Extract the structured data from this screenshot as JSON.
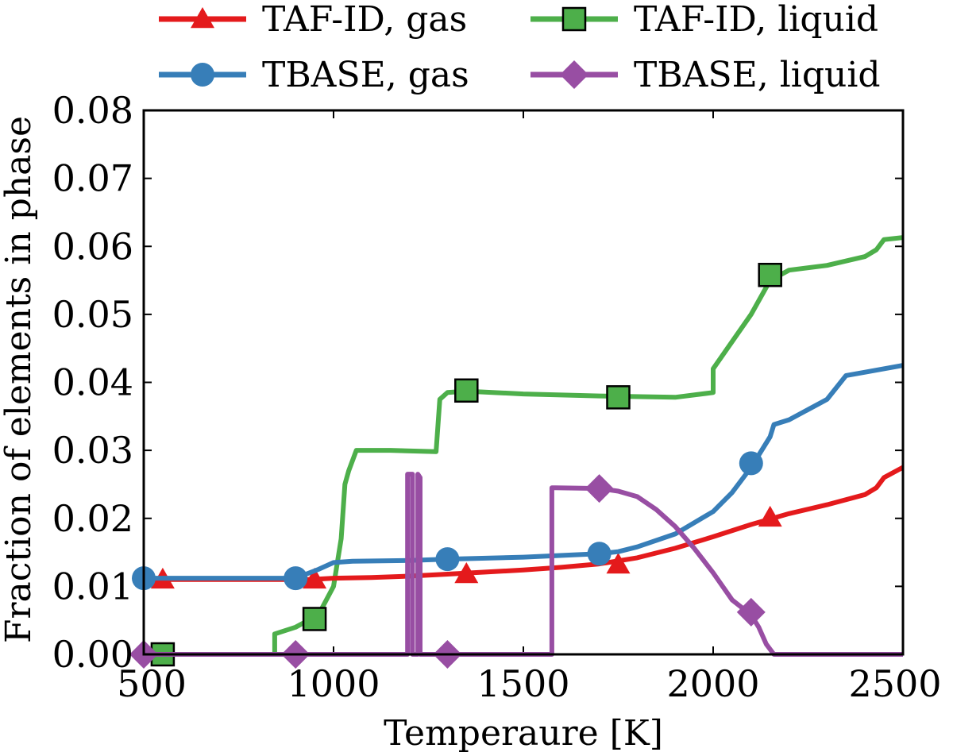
{
  "chart_data": {
    "type": "line",
    "title": "",
    "xlabel": "Temperaure [K]",
    "ylabel": "Fraction of elements in phase",
    "xlim": [
      500,
      2500
    ],
    "ylim": [
      0,
      0.08
    ],
    "xticks": [
      500,
      1000,
      1500,
      2000,
      2500
    ],
    "xtick_labels": [
      "500",
      "1000",
      "1500",
      "2000",
      "2500"
    ],
    "yticks": [
      0,
      0.01,
      0.02,
      0.03,
      0.04,
      0.05,
      0.06,
      0.07,
      0.08
    ],
    "ytick_labels": [
      "0.00",
      "0.01",
      "0.02",
      "0.03",
      "0.04",
      "0.05",
      "0.06",
      "0.07",
      "0.08"
    ],
    "legend_position": "above plot, two columns",
    "series": [
      {
        "name": "TAF-ID, gas",
        "color": "#e41a1c",
        "marker": "triangle",
        "x": [
          500,
          600,
          700,
          800,
          900,
          940,
          1000,
          1100,
          1200,
          1300,
          1400,
          1500,
          1600,
          1700,
          1800,
          1900,
          2000,
          2100,
          2200,
          2300,
          2400,
          2430,
          2450,
          2500
        ],
        "y": [
          0.011,
          0.011,
          0.011,
          0.011,
          0.011,
          0.011,
          0.0112,
          0.0113,
          0.0115,
          0.0118,
          0.0121,
          0.0124,
          0.0128,
          0.0133,
          0.0142,
          0.0156,
          0.0173,
          0.0191,
          0.0207,
          0.022,
          0.0235,
          0.0245,
          0.026,
          0.0275
        ],
        "markers_x": [
          550,
          950,
          1350,
          1750,
          2150
        ],
        "markers_y": [
          0.011,
          0.011,
          0.0118,
          0.0132,
          0.0201
        ]
      },
      {
        "name": "TAF-ID, liquid",
        "color": "#4daf4a",
        "marker": "square",
        "x": [
          500,
          845,
          845,
          900,
          960,
          1000,
          1020,
          1030,
          1040,
          1060,
          1150,
          1270,
          1280,
          1300,
          1350,
          1500,
          1700,
          1900,
          2000,
          2000,
          2100,
          2150,
          2200,
          2300,
          2400,
          2430,
          2450,
          2500
        ],
        "y": [
          0,
          0,
          0.003,
          0.004,
          0.0058,
          0.01,
          0.017,
          0.025,
          0.027,
          0.03,
          0.03,
          0.0298,
          0.0375,
          0.0385,
          0.0387,
          0.0383,
          0.038,
          0.0378,
          0.0385,
          0.042,
          0.05,
          0.055,
          0.0565,
          0.0572,
          0.0585,
          0.0595,
          0.061,
          0.0613
        ],
        "markers_x": [
          550,
          950,
          1350,
          1750,
          2150
        ],
        "markers_y": [
          0,
          0.0052,
          0.0388,
          0.0378,
          0.0558
        ]
      },
      {
        "name": "TBASE, gas",
        "color": "#377eb8",
        "marker": "circle",
        "x": [
          500,
          900,
          960,
          1000,
          1050,
          1200,
          1300,
          1500,
          1700,
          1750,
          1800,
          1900,
          2000,
          2050,
          2100,
          2150,
          2160,
          2200,
          2300,
          2350,
          2400,
          2500
        ],
        "y": [
          0.0112,
          0.0112,
          0.0125,
          0.0135,
          0.0137,
          0.0138,
          0.014,
          0.0143,
          0.0148,
          0.0151,
          0.0158,
          0.0177,
          0.021,
          0.0238,
          0.0275,
          0.032,
          0.0338,
          0.0345,
          0.0375,
          0.041,
          0.0415,
          0.0425
        ],
        "markers_x": [
          500,
          900,
          1300,
          1700,
          2100
        ],
        "markers_y": [
          0.0112,
          0.0112,
          0.014,
          0.0148,
          0.0281
        ]
      },
      {
        "name": "TBASE, liquid",
        "color": "#984ea3",
        "marker": "diamond",
        "x": [
          500,
          1195,
          1195,
          1200,
          1208,
          1208,
          1222,
          1222,
          1228,
          1228,
          1575,
          1575,
          1585,
          1700,
          1750,
          1800,
          1850,
          1900,
          1950,
          2000,
          2050,
          2100,
          2120,
          2140,
          2160,
          2500
        ],
        "y": [
          0,
          0,
          0.0265,
          0.0265,
          0.0265,
          0,
          0,
          0.0265,
          0.026,
          0,
          0,
          0.0245,
          0.0245,
          0.0244,
          0.024,
          0.0232,
          0.0213,
          0.0188,
          0.0156,
          0.012,
          0.008,
          0.0058,
          0.004,
          0.0015,
          0,
          0
        ],
        "markers_x": [
          500,
          900,
          1300,
          1700,
          2100
        ],
        "markers_y": [
          0,
          0,
          0,
          0.0244,
          0.0062
        ]
      }
    ]
  }
}
